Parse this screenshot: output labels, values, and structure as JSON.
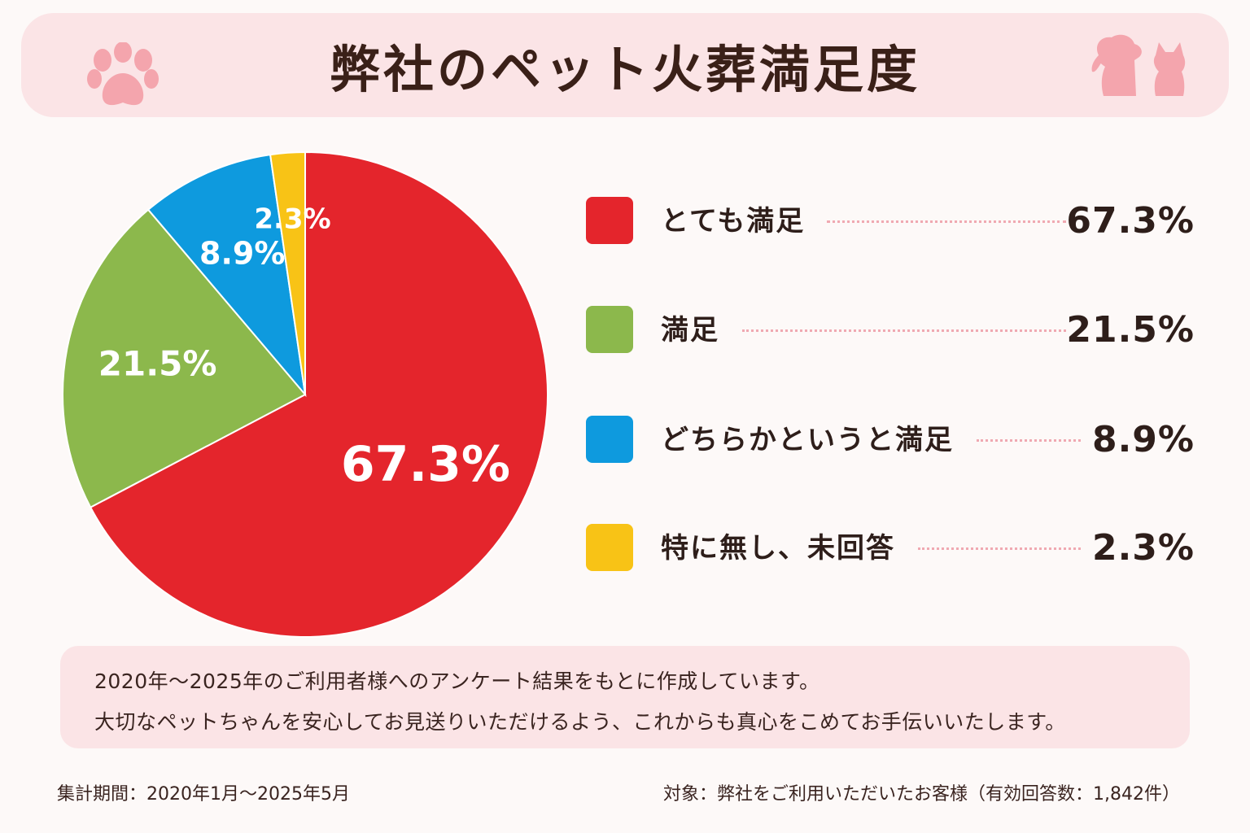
{
  "title": "弊社のペット火葬満足度",
  "icons": {
    "left": "paw-icon",
    "right": "dog-and-cat-silhouette-icon"
  },
  "colors": {
    "very_satisfied": "#e4252c",
    "satisfied": "#8cb84c",
    "somewhat_satisfied": "#0e9ade",
    "no_answer": "#f8c316",
    "header_bg": "#fbe4e6",
    "icon_pink": "#f4a5ad"
  },
  "chart_data": {
    "type": "pie",
    "title": "",
    "legend_position": "right",
    "slices": [
      {
        "label": "とても満足",
        "value": 67.3,
        "display": "67.3%",
        "color": "#e4252c"
      },
      {
        "label": "満足",
        "value": 21.5,
        "display": "21.5%",
        "color": "#8cb84c"
      },
      {
        "label": "どちらかというと満足",
        "value": 8.9,
        "display": "8.9%",
        "color": "#0e9ade"
      },
      {
        "label": "特に無し、未回答",
        "value": 2.3,
        "display": "2.3%",
        "color": "#f8c316"
      }
    ]
  },
  "note": {
    "line1": "2020年～2025年のご利用者様へのアンケート結果をもとに作成しています。",
    "line2": "大切なペットちゃんを安心してお見送りいただけるよう、これからも真心をこめてお手伝いいたします。"
  },
  "footer": {
    "period": "集計期間：2020年1月～2025年5月",
    "target": "対象：弊社をご利用いただいたお客様（有効回答数：1,842件）"
  }
}
